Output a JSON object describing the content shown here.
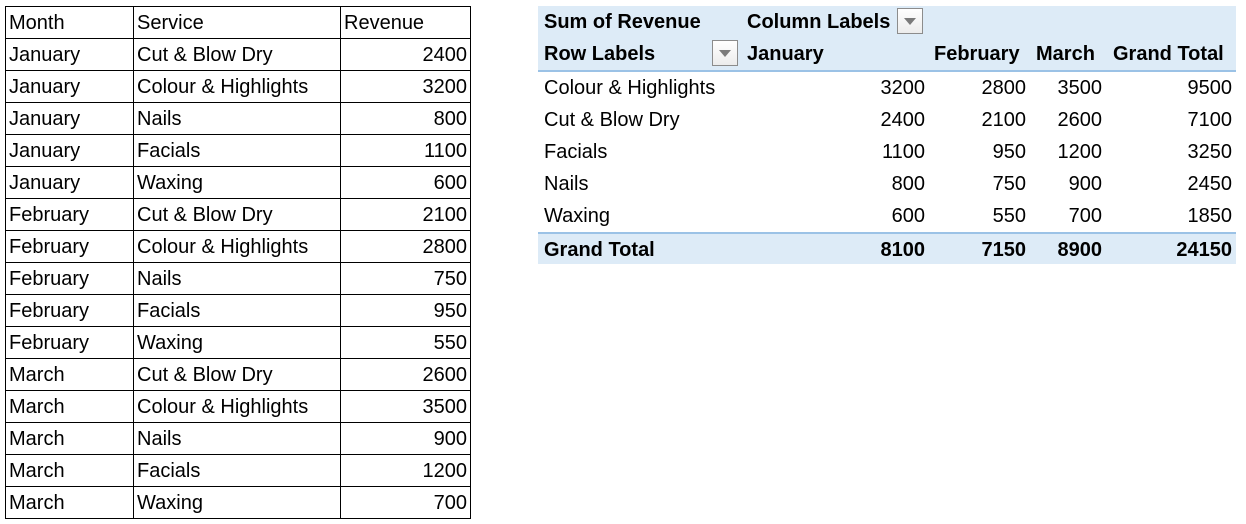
{
  "source_table": {
    "headers": [
      "Month",
      "Service",
      "Revenue"
    ],
    "rows": [
      [
        "January",
        "Cut & Blow Dry",
        "2400"
      ],
      [
        "January",
        "Colour & Highlights",
        "3200"
      ],
      [
        "January",
        "Nails",
        "800"
      ],
      [
        "January",
        "Facials",
        "1100"
      ],
      [
        "January",
        "Waxing",
        "600"
      ],
      [
        "February",
        "Cut & Blow Dry",
        "2100"
      ],
      [
        "February",
        "Colour & Highlights",
        "2800"
      ],
      [
        "February",
        "Nails",
        "750"
      ],
      [
        "February",
        "Facials",
        "950"
      ],
      [
        "February",
        "Waxing",
        "550"
      ],
      [
        "March",
        "Cut & Blow Dry",
        "2600"
      ],
      [
        "March",
        "Colour & Highlights",
        "3500"
      ],
      [
        "March",
        "Nails",
        "900"
      ],
      [
        "March",
        "Facials",
        "1200"
      ],
      [
        "March",
        "Waxing",
        "700"
      ]
    ]
  },
  "pivot": {
    "values_label": "Sum of Revenue",
    "column_labels": "Column Labels",
    "row_labels": "Row Labels",
    "columns": [
      "January",
      "February",
      "March",
      "Grand Total"
    ],
    "rows": [
      {
        "label": "Colour & Highlights",
        "values": [
          "3200",
          "2800",
          "3500",
          "9500"
        ]
      },
      {
        "label": "Cut & Blow Dry",
        "values": [
          "2400",
          "2100",
          "2600",
          "7100"
        ]
      },
      {
        "label": "Facials",
        "values": [
          "1100",
          "950",
          "1200",
          "3250"
        ]
      },
      {
        "label": "Nails",
        "values": [
          "800",
          "750",
          "900",
          "2450"
        ]
      },
      {
        "label": "Waxing",
        "values": [
          "600",
          "550",
          "700",
          "1850"
        ]
      }
    ],
    "grand_total": {
      "label": "Grand Total",
      "values": [
        "8100",
        "7150",
        "8900",
        "24150"
      ]
    },
    "header_fill_color": "#ddebf7",
    "border_color": "#9bc2e6"
  }
}
